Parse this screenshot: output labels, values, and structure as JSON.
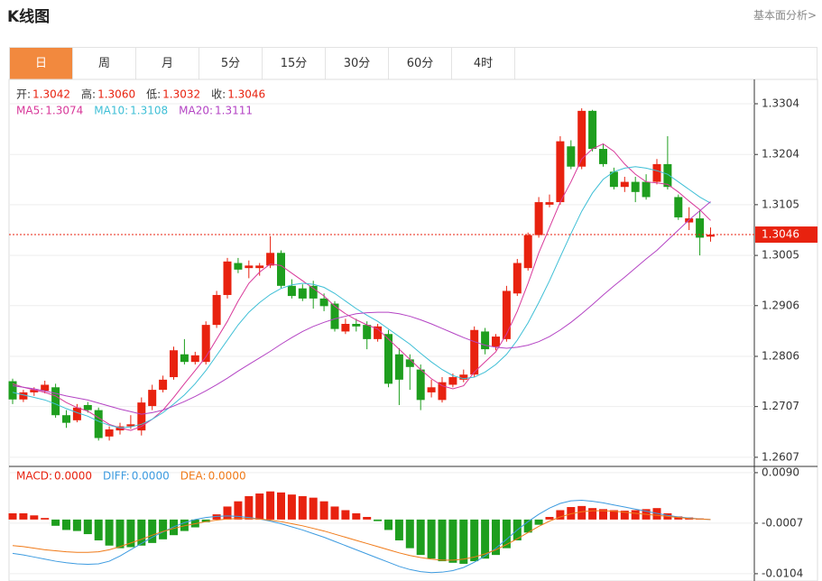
{
  "header": {
    "title": "K线图",
    "link": "基本面分析>"
  },
  "tabs": [
    "日",
    "周",
    "月",
    "5分",
    "15分",
    "30分",
    "60分",
    "4时"
  ],
  "active_tab": 0,
  "chart_data": [
    {
      "type": "candlestick",
      "info": [
        {
          "name": "开:",
          "label": "1.3042"
        },
        {
          "name": "高:",
          "label": "1.3060"
        },
        {
          "name": "低:",
          "label": "1.3032"
        },
        {
          "name": "收:",
          "label": "1.3046"
        }
      ],
      "up_color": "#e8220f",
      "down_color": "#1e9e1e",
      "open": [
        1.2757,
        1.2721,
        1.2735,
        1.2738,
        1.2745,
        1.269,
        1.268,
        1.271,
        1.27,
        1.2648,
        1.266,
        1.2668,
        1.266,
        1.2708,
        1.274,
        1.2765,
        1.281,
        1.2795,
        1.2795,
        1.2868,
        1.2927,
        1.299,
        1.298,
        1.298,
        1.2985,
        1.301,
        1.2945,
        1.294,
        1.2945,
        1.292,
        1.291,
        1.2855,
        1.287,
        1.2868,
        1.284,
        1.285,
        1.281,
        1.28,
        1.278,
        1.2735,
        1.272,
        1.275,
        1.276,
        1.277,
        1.2855,
        1.2825,
        1.284,
        1.293,
        1.298,
        1.3045,
        1.3105,
        1.311,
        1.322,
        1.318,
        1.329,
        1.3215,
        1.317,
        1.314,
        1.315,
        1.315,
        1.315,
        1.3185,
        1.312,
        1.307,
        1.3078,
        1.3042
      ],
      "high": [
        1.2762,
        1.274,
        1.2745,
        1.2758,
        1.2752,
        1.27,
        1.2712,
        1.2716,
        1.2705,
        1.2668,
        1.2675,
        1.269,
        1.2725,
        1.275,
        1.2768,
        1.2825,
        1.284,
        1.2815,
        1.2875,
        1.2935,
        1.3,
        1.3,
        1.2995,
        1.299,
        1.3043,
        1.3015,
        1.2958,
        1.2948,
        1.2955,
        1.293,
        1.2915,
        1.288,
        1.288,
        1.2875,
        1.287,
        1.2858,
        1.2822,
        1.281,
        1.279,
        1.276,
        1.2765,
        1.2772,
        1.278,
        1.2865,
        1.2862,
        1.285,
        1.2945,
        1.2998,
        1.305,
        1.312,
        1.3125,
        1.324,
        1.3232,
        1.3295,
        1.3292,
        1.3225,
        1.3178,
        1.316,
        1.316,
        1.3165,
        1.3195,
        1.324,
        1.3125,
        1.31,
        1.3095,
        1.306
      ],
      "low": [
        1.2712,
        1.2716,
        1.2728,
        1.2733,
        1.2685,
        1.2665,
        1.2676,
        1.2695,
        1.264,
        1.264,
        1.2652,
        1.2663,
        1.265,
        1.27,
        1.2735,
        1.276,
        1.279,
        1.279,
        1.279,
        1.2862,
        1.292,
        1.297,
        1.296,
        1.2965,
        1.298,
        1.294,
        1.292,
        1.2915,
        1.29,
        1.2895,
        1.2855,
        1.285,
        1.2855,
        1.282,
        1.2835,
        1.2745,
        1.271,
        1.274,
        1.27,
        1.2725,
        1.2715,
        1.2745,
        1.2755,
        1.2765,
        1.281,
        1.2818,
        1.2835,
        1.2925,
        1.2975,
        1.304,
        1.31,
        1.3105,
        1.3175,
        1.3175,
        1.321,
        1.318,
        1.3135,
        1.313,
        1.311,
        1.3115,
        1.3145,
        1.3135,
        1.3075,
        1.3055,
        1.3005,
        1.3032
      ],
      "close": [
        1.2721,
        1.2735,
        1.274,
        1.275,
        1.269,
        1.2675,
        1.2705,
        1.27,
        1.2645,
        1.2662,
        1.2668,
        1.2672,
        1.2715,
        1.274,
        1.276,
        1.2818,
        1.2795,
        1.2808,
        1.2868,
        1.2927,
        1.2993,
        1.2977,
        1.2985,
        1.2985,
        1.301,
        1.2945,
        1.2925,
        1.292,
        1.292,
        1.2905,
        1.286,
        1.287,
        1.2865,
        1.284,
        1.2865,
        1.2752,
        1.276,
        1.2785,
        1.272,
        1.2745,
        1.2755,
        1.2765,
        1.277,
        1.2858,
        1.282,
        1.2845,
        1.2935,
        1.299,
        1.3045,
        1.311,
        1.311,
        1.323,
        1.318,
        1.329,
        1.3215,
        1.3185,
        1.314,
        1.315,
        1.313,
        1.312,
        1.3185,
        1.314,
        1.308,
        1.3078,
        1.304,
        1.3046
      ],
      "series": [
        {
          "name": "MA5:",
          "label": "1.3074",
          "color": "#d8399a",
          "values": [
            1.2752,
            1.2745,
            1.274,
            1.2735,
            1.2728,
            1.2715,
            1.2705,
            1.2698,
            1.2685,
            1.2672,
            1.2665,
            1.266,
            1.2668,
            1.2682,
            1.27,
            1.2725,
            1.2752,
            1.2778,
            1.2805,
            1.284,
            1.2875,
            1.2915,
            1.295,
            1.2972,
            1.2988,
            1.2985,
            1.297,
            1.2955,
            1.294,
            1.2925,
            1.2905,
            1.289,
            1.2878,
            1.2868,
            1.286,
            1.284,
            1.282,
            1.28,
            1.278,
            1.2762,
            1.2748,
            1.2742,
            1.2748,
            1.2775,
            1.2795,
            1.2815,
            1.285,
            1.2895,
            1.295,
            1.301,
            1.306,
            1.311,
            1.315,
            1.3195,
            1.3215,
            1.3225,
            1.321,
            1.3185,
            1.3165,
            1.315,
            1.3148,
            1.3145,
            1.313,
            1.3112,
            1.3095,
            1.3074
          ]
        },
        {
          "name": "MA10:",
          "label": "1.3108",
          "color": "#3fbfd6",
          "values": [
            1.2735,
            1.273,
            1.2725,
            1.272,
            1.2712,
            1.2703,
            1.2695,
            1.2688,
            1.2678,
            1.267,
            1.2665,
            1.2667,
            1.2672,
            1.2682,
            1.2695,
            1.2712,
            1.273,
            1.2752,
            1.2778,
            1.2808,
            1.2838,
            1.2868,
            1.2893,
            1.2912,
            1.2928,
            1.294,
            1.2947,
            1.295,
            1.2948,
            1.2942,
            1.293,
            1.2915,
            1.29,
            1.2887,
            1.2875,
            1.286,
            1.2845,
            1.283,
            1.2812,
            1.2795,
            1.278,
            1.2768,
            1.2762,
            1.2765,
            1.2775,
            1.279,
            1.281,
            1.2838,
            1.2872,
            1.2912,
            1.2955,
            1.3002,
            1.3048,
            1.3092,
            1.3128,
            1.3155,
            1.317,
            1.3177,
            1.318,
            1.3177,
            1.3172,
            1.3165,
            1.315,
            1.3135,
            1.312,
            1.3108
          ]
        },
        {
          "name": "MA20:",
          "label": "1.3111",
          "color": "#b444c4",
          "values": [
            1.2748,
            1.2745,
            1.2742,
            1.2738,
            1.2733,
            1.2728,
            1.2724,
            1.272,
            1.2714,
            1.2708,
            1.2702,
            1.2697,
            1.2692,
            1.2695,
            1.27,
            1.2708,
            1.2717,
            1.2727,
            1.2738,
            1.275,
            1.2763,
            1.2777,
            1.279,
            1.2803,
            1.2816,
            1.283,
            1.2843,
            1.2855,
            1.2865,
            1.2873,
            1.288,
            1.2885,
            1.289,
            1.2892,
            1.2893,
            1.2893,
            1.289,
            1.2885,
            1.2878,
            1.287,
            1.2861,
            1.2852,
            1.2843,
            1.2835,
            1.2828,
            1.2824,
            1.2822,
            1.2824,
            1.2828,
            1.2835,
            1.2845,
            1.2858,
            1.2873,
            1.289,
            1.2908,
            1.2927,
            1.2945,
            1.2962,
            1.298,
            1.2998,
            1.3015,
            1.3035,
            1.3055,
            1.3075,
            1.3093,
            1.3111
          ]
        }
      ],
      "last_price": 1.3046,
      "ylim": [
        1.2589,
        1.3352
      ],
      "yticks": [
        1.3304,
        1.3204,
        1.3105,
        1.3005,
        1.2906,
        1.2806,
        1.2707,
        1.2607
      ],
      "grid": true
    },
    {
      "type": "macd",
      "up_color": "#e8220f",
      "down_color": "#1e9e1e",
      "histogram": {
        "name": "MACD:",
        "label": "0.0000",
        "values": [
          0.0012,
          0.0012,
          0.0008,
          0.0003,
          -0.0012,
          -0.002,
          -0.0022,
          -0.0028,
          -0.004,
          -0.005,
          -0.0055,
          -0.0053,
          -0.005,
          -0.0045,
          -0.0038,
          -0.003,
          -0.0022,
          -0.0015,
          -0.0005,
          0.001,
          0.0025,
          0.0035,
          0.0045,
          0.005,
          0.0054,
          0.0052,
          0.0048,
          0.0045,
          0.0042,
          0.0035,
          0.0025,
          0.0018,
          0.0012,
          0.0005,
          -0.0003,
          -0.002,
          -0.004,
          -0.0055,
          -0.0068,
          -0.0075,
          -0.008,
          -0.0083,
          -0.0085,
          -0.008,
          -0.0075,
          -0.0068,
          -0.0055,
          -0.004,
          -0.0025,
          -0.001,
          0.0005,
          0.0018,
          0.0024,
          0.0026,
          0.0022,
          0.002,
          0.0018,
          0.0017,
          0.0018,
          0.002,
          0.0022,
          0.0012,
          0.0006,
          0.0004,
          0.0002,
          0.0
        ]
      },
      "series": [
        {
          "name": "DIFF:",
          "label": "0.0000",
          "color": "#3d9be0",
          "values": [
            -0.0065,
            -0.0068,
            -0.0072,
            -0.0076,
            -0.008,
            -0.0083,
            -0.0085,
            -0.0086,
            -0.0085,
            -0.008,
            -0.007,
            -0.0058,
            -0.0046,
            -0.0034,
            -0.0024,
            -0.0014,
            -0.0006,
            0.0,
            0.0004,
            0.0006,
            0.0007,
            0.0006,
            0.0004,
            0.0001,
            -0.0003,
            -0.0008,
            -0.0014,
            -0.002,
            -0.0027,
            -0.0034,
            -0.0042,
            -0.005,
            -0.0058,
            -0.0066,
            -0.0074,
            -0.0082,
            -0.009,
            -0.0096,
            -0.01,
            -0.0102,
            -0.0101,
            -0.0098,
            -0.0092,
            -0.0082,
            -0.007,
            -0.0055,
            -0.0038,
            -0.002,
            -0.0004,
            0.001,
            0.0022,
            0.0031,
            0.0036,
            0.0037,
            0.0035,
            0.0032,
            0.0028,
            0.0024,
            0.002,
            0.0016,
            0.0012,
            0.0008,
            0.0005,
            0.0003,
            0.0001,
            0.0
          ]
        },
        {
          "name": "DEA:",
          "label": "0.0000",
          "color": "#f07a18",
          "values": [
            -0.005,
            -0.0052,
            -0.0055,
            -0.0058,
            -0.006,
            -0.0062,
            -0.0063,
            -0.0063,
            -0.0062,
            -0.0058,
            -0.0052,
            -0.0045,
            -0.0038,
            -0.003,
            -0.0023,
            -0.0017,
            -0.0012,
            -0.0008,
            -0.0004,
            -0.0001,
            0.0001,
            0.0002,
            0.0002,
            0.0001,
            -0.0001,
            -0.0004,
            -0.0008,
            -0.0012,
            -0.0017,
            -0.0022,
            -0.0028,
            -0.0034,
            -0.004,
            -0.0046,
            -0.0052,
            -0.0058,
            -0.0064,
            -0.0069,
            -0.0073,
            -0.0076,
            -0.0078,
            -0.0078,
            -0.0076,
            -0.0072,
            -0.0066,
            -0.0058,
            -0.0048,
            -0.0037,
            -0.0025,
            -0.0013,
            -0.0003,
            0.0005,
            0.0011,
            0.0015,
            0.0017,
            0.0017,
            0.0016,
            0.0014,
            0.0012,
            0.001,
            0.0008,
            0.0006,
            0.0004,
            0.0002,
            0.0001,
            0.0
          ]
        }
      ],
      "ylim": [
        -0.0118,
        0.0102
      ],
      "yticks": [
        {
          "value": 0.009,
          "label": "0.0090"
        },
        -0.0007,
        -0.0104
      ],
      "grid": true
    }
  ]
}
